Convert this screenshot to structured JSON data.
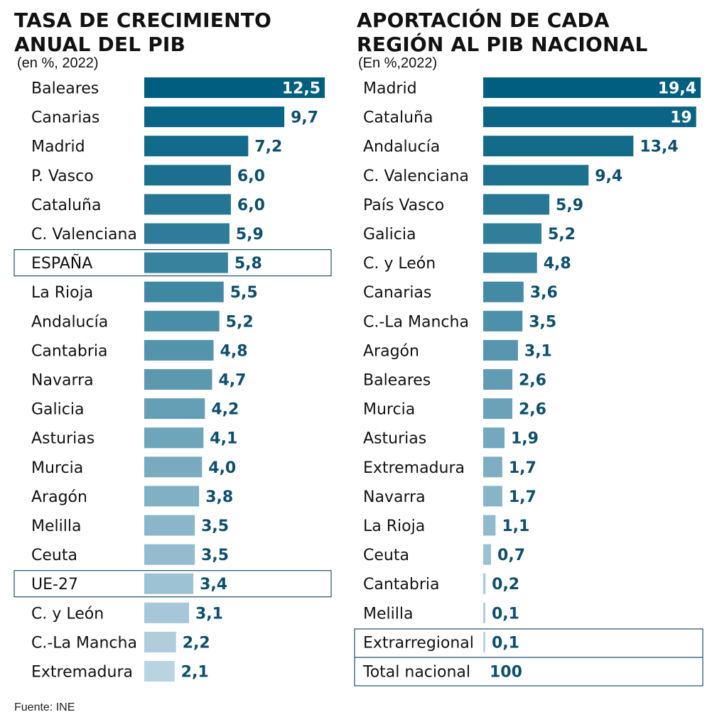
{
  "chart_data": [
    {
      "type": "bar",
      "orientation": "horizontal",
      "title": "TASA DE CRECIMIENTO ANUAL DEL PIB",
      "subtitle": "(en %, 2022)",
      "categories": [
        "Baleares",
        "Canarias",
        "Madrid",
        "P. Vasco",
        "Cataluña",
        "C. Valenciana",
        "ESPAÑA",
        "La Rioja",
        "Andalucía",
        "Cantabria",
        "Navarra",
        "Galicia",
        "Asturias",
        "Murcia",
        "Aragón",
        "Melilla",
        "Ceuta",
        "UE-27",
        "C. y León",
        "C.-La Mancha",
        "Extremadura"
      ],
      "values": [
        12.5,
        9.7,
        7.2,
        6.0,
        6.0,
        5.9,
        5.8,
        5.5,
        5.2,
        4.8,
        4.7,
        4.2,
        4.1,
        4.0,
        3.8,
        3.5,
        3.5,
        3.4,
        3.1,
        2.2,
        2.1
      ],
      "labels": [
        "12,5",
        "9,7",
        "7,2",
        "6,0",
        "6,0",
        "5,9",
        "5,8",
        "5,5",
        "5,2",
        "4,8",
        "4,7",
        "4,2",
        "4,1",
        "4,0",
        "3,8",
        "3,5",
        "3,5",
        "3,4",
        "3,1",
        "2,2",
        "2,1"
      ],
      "highlighted": [
        "ESPAÑA",
        "UE-27"
      ],
      "xlim": [
        0,
        12.5
      ],
      "grid": false
    },
    {
      "type": "bar",
      "orientation": "horizontal",
      "title": "APORTACIÓN DE CADA REGIÓN AL PIB NACIONAL",
      "subtitle": "(En %,2022)",
      "categories": [
        "Madrid",
        "Cataluña",
        "Andalucía",
        "C. Valenciana",
        "País Vasco",
        "Galicia",
        "C. y León",
        "Canarias",
        "C.-La Mancha",
        "Aragón",
        "Baleares",
        "Murcia",
        "Asturias",
        "Extremadura",
        "Navarra",
        "La Rioja",
        "Ceuta",
        "Cantabria",
        "Melilla",
        "Extrarregional"
      ],
      "values": [
        19.4,
        19,
        13.4,
        9.4,
        5.9,
        5.2,
        4.8,
        3.6,
        3.5,
        3.1,
        2.6,
        2.6,
        1.9,
        1.7,
        1.7,
        1.1,
        0.7,
        0.2,
        0.1,
        0.1
      ],
      "labels": [
        "19,4",
        "19",
        "13,4",
        "9,4",
        "5,9",
        "5,2",
        "4,8",
        "3,6",
        "3,5",
        "3,1",
        "2,6",
        "2,6",
        "1,9",
        "1,7",
        "1,7",
        "1,1",
        "0,7",
        "0,2",
        "0,1",
        "0,1"
      ],
      "highlighted": [
        "Extrarregional"
      ],
      "total": {
        "label": "Total nacional",
        "value": "100"
      },
      "xlim": [
        0,
        19.4
      ],
      "grid": false
    }
  ],
  "colors": {
    "dark": "#005f80",
    "light": "#b8d3e2",
    "label_text": "#0d4f6c",
    "inside_label": "#ffffff",
    "box": "#1f4f6a"
  },
  "source": "Fuente: INE"
}
